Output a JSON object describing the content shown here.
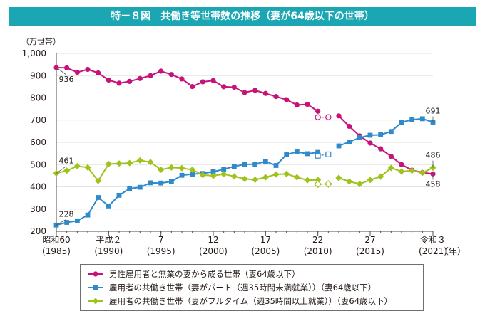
{
  "title": "特－８図　共働き等世帯数の推移（妻が64歳以下の世帯）",
  "chart_data": {
    "type": "line",
    "ylabel": "（万世帯）",
    "xunit": "（年）",
    "ylim": [
      200,
      1000
    ],
    "yticks": [
      200,
      300,
      400,
      500,
      600,
      700,
      800,
      900,
      1000
    ],
    "ytick_labels": [
      "200",
      "300",
      "400",
      "500",
      "600",
      "700",
      "800",
      "900",
      "1,000"
    ],
    "x": [
      1985,
      1986,
      1987,
      1988,
      1989,
      1990,
      1991,
      1992,
      1993,
      1994,
      1995,
      1996,
      1997,
      1998,
      1999,
      2000,
      2001,
      2002,
      2003,
      2004,
      2005,
      2006,
      2007,
      2008,
      2009,
      2010,
      2011,
      2012,
      2013,
      2014,
      2015,
      2016,
      2017,
      2018,
      2019,
      2020,
      2021
    ],
    "xticks": [
      {
        "x": 1985,
        "era": "昭和60",
        "year": "(1985)"
      },
      {
        "x": 1990,
        "era": "平成２",
        "year": "(1990)"
      },
      {
        "x": 1995,
        "era": "7",
        "year": "(1995)"
      },
      {
        "x": 2000,
        "era": "12",
        "year": "(2000)"
      },
      {
        "x": 2005,
        "era": "17",
        "year": "(2005)"
      },
      {
        "x": 2010,
        "era": "22",
        "year": "(2010)"
      },
      {
        "x": 2015,
        "era": "27",
        "year": "(2015)"
      },
      {
        "x": 2021,
        "era": "令和３",
        "year": "(2021)"
      }
    ],
    "grid": "horizontal",
    "legend": "bottom",
    "gap_note": "2011 values shown as hollow markers, connected to 2010 by a dashed line",
    "series": [
      {
        "name": "男性雇用者と無業の妻から成る世帯（妻64歳以下）",
        "color": "#c8127a",
        "marker": "circle",
        "values": [
          936,
          935,
          915,
          928,
          912,
          880,
          866,
          874,
          887,
          900,
          920,
          905,
          885,
          851,
          872,
          878,
          850,
          848,
          824,
          834,
          820,
          806,
          792,
          768,
          771,
          740,
          null,
          719,
          672,
          629,
          597,
          571,
          537,
          500,
          475,
          464,
          458
        ],
        "hollow": [
          {
            "x": 2010,
            "y": 713
          },
          {
            "x": 2011,
            "y": 713
          }
        ]
      },
      {
        "name": "雇用者の共働き世帯（妻がパート（週35時間未満就業））（妻64歳以下）",
        "color": "#2e8acb",
        "marker": "square",
        "values": [
          228,
          240,
          247,
          273,
          352,
          314,
          362,
          392,
          398,
          418,
          417,
          424,
          452,
          457,
          460,
          468,
          479,
          492,
          501,
          502,
          514,
          496,
          545,
          557,
          549,
          555,
          null,
          584,
          602,
          621,
          632,
          634,
          649,
          690,
          702,
          706,
          691
        ],
        "hollow": [
          {
            "x": 2010,
            "y": 540
          },
          {
            "x": 2011,
            "y": 546
          }
        ]
      },
      {
        "name": "雇用者の共働き世帯（妻がフルタイム（週35時間以上就業））（妻64歳以下）",
        "color": "#9fc31c",
        "marker": "diamond",
        "values": [
          461,
          473,
          493,
          487,
          427,
          503,
          505,
          507,
          519,
          511,
          477,
          487,
          484,
          477,
          453,
          450,
          457,
          447,
          436,
          432,
          443,
          456,
          458,
          443,
          430,
          431,
          null,
          440,
          424,
          413,
          431,
          446,
          485,
          469,
          473,
          463,
          486
        ],
        "hollow": [
          {
            "x": 2010,
            "y": 412
          },
          {
            "x": 2011,
            "y": 413
          }
        ]
      }
    ],
    "annotations": [
      {
        "text": "936",
        "x": 1985,
        "y": 936
      },
      {
        "text": "228",
        "x": 1985,
        "y": 228
      },
      {
        "text": "461",
        "x": 1985,
        "y": 461
      },
      {
        "text": "691",
        "x": 2021,
        "y": 691
      },
      {
        "text": "486",
        "x": 2021,
        "y": 486
      },
      {
        "text": "458",
        "x": 2021,
        "y": 458
      }
    ]
  }
}
